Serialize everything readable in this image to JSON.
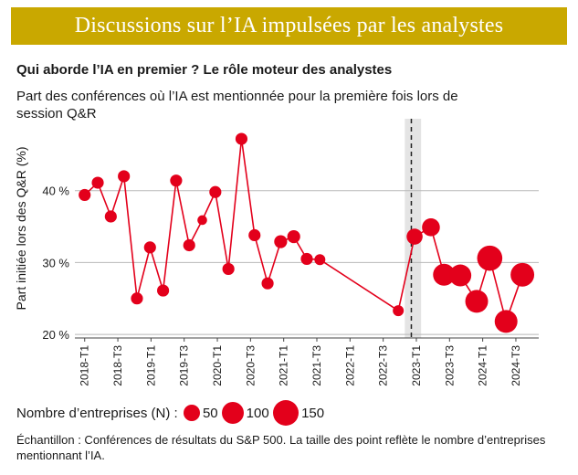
{
  "header": {
    "title": "Discussions sur l’IA impulsées par les analystes"
  },
  "chart_data": {
    "type": "scatter",
    "subtitle": "Qui aborde l’IA en premier ? Le rôle moteur des analystes",
    "description": "Part des conférences où l’IA est mentionnée pour la première fois lors de session Q&R",
    "ylabel": "Part initiée lors des Q&R (%)",
    "ylim": [
      19.5,
      50
    ],
    "yticks": [
      20,
      30,
      40
    ],
    "ytick_labels": [
      "20 %",
      "30 %",
      "40 %"
    ],
    "x_tick_labels": [
      "2018-T1",
      "2018-T3",
      "2019-T1",
      "2019-T3",
      "2020-T1",
      "2020-T3",
      "2021-T1",
      "2021-T3",
      "2022-T1",
      "2022-T3",
      "2023-T1",
      "2023-T3",
      "2024-T1",
      "2024-T3"
    ],
    "color": "#e3001b",
    "shaded_region": [
      2022.9,
      2023.15
    ],
    "vertical_line": 2023.0,
    "points": [
      {
        "x": 2018.0,
        "y": 39.4,
        "n": 20
      },
      {
        "x": 2018.2,
        "y": 41.1,
        "n": 20
      },
      {
        "x": 2018.4,
        "y": 36.4,
        "n": 20
      },
      {
        "x": 2018.6,
        "y": 42.0,
        "n": 20
      },
      {
        "x": 2018.8,
        "y": 25.0,
        "n": 20
      },
      {
        "x": 2019.0,
        "y": 32.1,
        "n": 20
      },
      {
        "x": 2019.2,
        "y": 26.1,
        "n": 20
      },
      {
        "x": 2019.4,
        "y": 41.4,
        "n": 20
      },
      {
        "x": 2019.6,
        "y": 32.4,
        "n": 20
      },
      {
        "x": 2019.8,
        "y": 35.9,
        "n": 10
      },
      {
        "x": 2020.0,
        "y": 39.8,
        "n": 20
      },
      {
        "x": 2020.2,
        "y": 29.1,
        "n": 20
      },
      {
        "x": 2020.4,
        "y": 47.2,
        "n": 20
      },
      {
        "x": 2020.6,
        "y": 33.8,
        "n": 20
      },
      {
        "x": 2020.8,
        "y": 27.1,
        "n": 20
      },
      {
        "x": 2021.0,
        "y": 32.9,
        "n": 25
      },
      {
        "x": 2021.2,
        "y": 33.6,
        "n": 25
      },
      {
        "x": 2021.4,
        "y": 30.5,
        "n": 20
      },
      {
        "x": 2021.6,
        "y": 30.4,
        "n": 15
      },
      {
        "x": 2022.8,
        "y": 23.3,
        "n": 15
      },
      {
        "x": 2023.05,
        "y": 33.6,
        "n": 45
      },
      {
        "x": 2023.3,
        "y": 34.9,
        "n": 60
      },
      {
        "x": 2023.5,
        "y": 28.3,
        "n": 100
      },
      {
        "x": 2023.75,
        "y": 28.2,
        "n": 100
      },
      {
        "x": 2024.0,
        "y": 24.6,
        "n": 110
      },
      {
        "x": 2024.2,
        "y": 30.6,
        "n": 140
      },
      {
        "x": 2024.45,
        "y": 21.8,
        "n": 110
      },
      {
        "x": 2024.7,
        "y": 28.3,
        "n": 120
      }
    ],
    "legend": {
      "label": "Nombre d’entreprises (N) :",
      "items": [
        {
          "n": 50,
          "label": "50"
        },
        {
          "n": 100,
          "label": "100"
        },
        {
          "n": 150,
          "label": "150"
        }
      ]
    }
  },
  "footnote": "Échantillon : Conférences de résultats du S&P 500. La taille des point reflète le nombre d’entreprises mentionnant l’IA."
}
